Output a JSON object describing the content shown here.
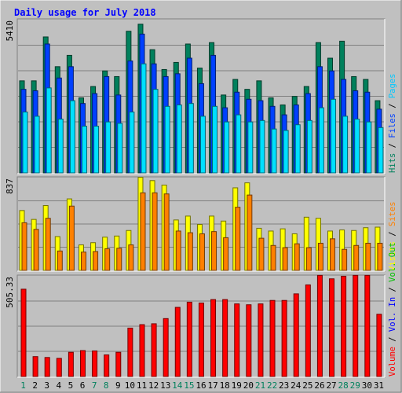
{
  "chart_data": {
    "type": "bar",
    "title": "Daily usage for July 2018",
    "categories": [
      "1",
      "2",
      "3",
      "4",
      "5",
      "6",
      "7",
      "8",
      "9",
      "10",
      "11",
      "12",
      "13",
      "14",
      "15",
      "16",
      "17",
      "18",
      "19",
      "20",
      "21",
      "22",
      "23",
      "24",
      "25",
      "26",
      "27",
      "28",
      "29",
      "30",
      "31"
    ],
    "weekend_days": [
      "1",
      "7",
      "8",
      "14",
      "15",
      "21",
      "22",
      "28",
      "29"
    ],
    "panels": [
      {
        "id": "top",
        "ymax_label": "5410",
        "ylim": [
          0,
          5410
        ],
        "legend": [
          "Hits",
          "Files",
          "Pages"
        ],
        "series": [
          {
            "name": "Hits",
            "color": "#00805c",
            "values": [
              3250,
              3250,
              4800,
              3750,
              4150,
              2650,
              3050,
              3600,
              3400,
              5000,
              5250,
              4350,
              3650,
              3900,
              4550,
              3700,
              4600,
              2750,
              3300,
              2950,
              3250,
              2650,
              2400,
              2700,
              3050,
              4600,
              4050,
              4650,
              3400,
              3300,
              2550
            ]
          },
          {
            "name": "Files",
            "color": "#0040ff",
            "values": [
              2950,
              2900,
              4550,
              3350,
              3750,
              2450,
              2800,
              3400,
              2750,
              3950,
              4900,
              3850,
              3400,
              3500,
              4050,
              3150,
              4150,
              2300,
              2850,
              2600,
              2550,
              2350,
              2050,
              2400,
              2800,
              3750,
              3600,
              3300,
              2900,
              2850,
              2250
            ]
          },
          {
            "name": "Pages",
            "color": "#00e0ff",
            "values": [
              2150,
              2000,
              3000,
              1900,
              2550,
              1650,
              1650,
              1800,
              1750,
              2150,
              3850,
              2950,
              2350,
              2400,
              2450,
              2000,
              2350,
              1800,
              2050,
              1800,
              1850,
              1550,
              1500,
              1700,
              1850,
              2300,
              2600,
              2000,
              1900,
              1800,
              1600
            ]
          }
        ]
      },
      {
        "id": "mid",
        "ymax_label": "837",
        "ylim": [
          0,
          837
        ],
        "legend": [
          "Visits",
          "Sites"
        ],
        "series": [
          {
            "name": "Visits",
            "color": "#ffff00",
            "values": [
              540,
              460,
              585,
              305,
              645,
              230,
              250,
              300,
              310,
              360,
              840,
              810,
              770,
              455,
              490,
              415,
              490,
              445,
              745,
              790,
              380,
              355,
              375,
              330,
              480,
              470,
              355,
              365,
              360,
              385,
              390
            ]
          },
          {
            "name": "Sites",
            "color": "#ff8000",
            "values": [
              430,
              370,
              470,
              175,
              580,
              165,
              170,
              195,
              200,
              230,
              700,
              700,
              690,
              355,
              340,
              330,
              350,
              295,
              570,
              680,
              290,
              225,
              205,
              240,
              205,
              245,
              285,
              190,
              225,
              245,
              245
            ]
          }
        ]
      },
      {
        "id": "bot",
        "ymax_label": "505.33",
        "ylim": [
          0,
          582
        ],
        "legend": [
          "Volume",
          "Vol. In",
          "Vol. Out"
        ],
        "series": [
          {
            "name": "Volume",
            "color": "#ff0000",
            "values": [
              505,
              115,
              110,
              105,
              140,
              150,
              148,
              125,
              140,
              280,
              300,
              305,
              335,
              400,
              430,
              425,
              445,
              445,
              420,
              415,
              420,
              440,
              440,
              478,
              530,
              585,
              565,
              580,
              585,
              585,
              360
            ]
          }
        ]
      }
    ]
  }
}
